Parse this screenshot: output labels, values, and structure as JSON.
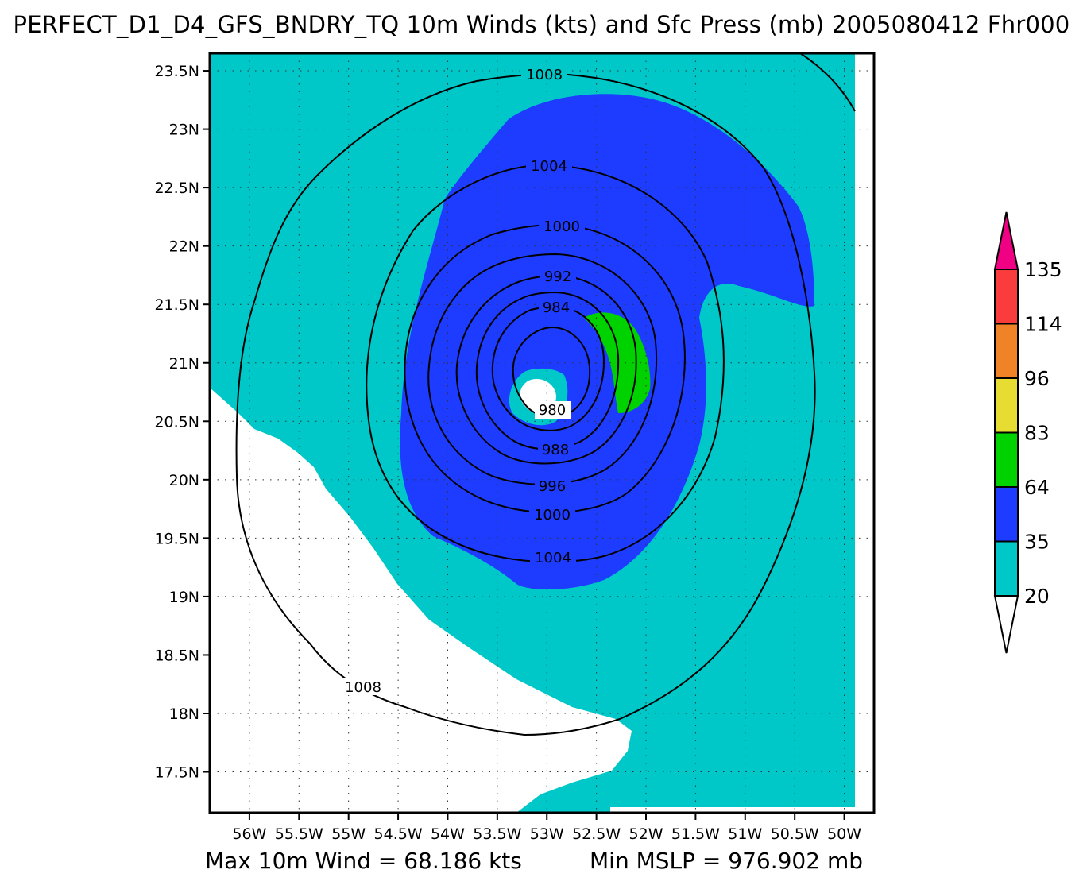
{
  "title": "PERFECT_D1_D4_GFS_BNDRY_TQ 10m Winds (kts) and Sfc Press (mb) 2005080412 Fhr000",
  "footer": {
    "max_wind": "Max 10m Wind = 68.186 kts",
    "min_mslp": "Min MSLP = 976.902 mb"
  },
  "map": {
    "lon_range": [
      -56.4,
      -49.7
    ],
    "lat_range": [
      17.15,
      23.65
    ],
    "lon_ticks": [
      {
        "value": -56.0,
        "label": "56W"
      },
      {
        "value": -55.5,
        "label": "55.5W"
      },
      {
        "value": -55.0,
        "label": "55W"
      },
      {
        "value": -54.5,
        "label": "54.5W"
      },
      {
        "value": -54.0,
        "label": "54W"
      },
      {
        "value": -53.5,
        "label": "53.5W"
      },
      {
        "value": -53.0,
        "label": "53W"
      },
      {
        "value": -52.5,
        "label": "52.5W"
      },
      {
        "value": -52.0,
        "label": "52W"
      },
      {
        "value": -51.5,
        "label": "51.5W"
      },
      {
        "value": -51.0,
        "label": "51W"
      },
      {
        "value": -50.5,
        "label": "50.5W"
      },
      {
        "value": -50.0,
        "label": "50W"
      }
    ],
    "lat_ticks": [
      {
        "value": 23.5,
        "label": "23.5N"
      },
      {
        "value": 23.0,
        "label": "23N"
      },
      {
        "value": 22.5,
        "label": "22.5N"
      },
      {
        "value": 22.0,
        "label": "22N"
      },
      {
        "value": 21.5,
        "label": "21.5N"
      },
      {
        "value": 21.0,
        "label": "21N"
      },
      {
        "value": 20.5,
        "label": "20.5N"
      },
      {
        "value": 20.0,
        "label": "20N"
      },
      {
        "value": 19.5,
        "label": "19.5N"
      },
      {
        "value": 19.0,
        "label": "19N"
      },
      {
        "value": 18.5,
        "label": "18.5N"
      },
      {
        "value": 18.0,
        "label": "18N"
      },
      {
        "value": 17.5,
        "label": "17.5N"
      }
    ],
    "wind_colors": {
      "calm": "#ffffff",
      "ts_20_35": "#00c8c8",
      "ts_35_64": "#1e3cff",
      "h_64_83": "#00d200",
      "h_83_96": "#e6dc32",
      "h_96_114": "#f08228",
      "h_114_135": "#fa3c3c",
      "h_135_plus": "#f00082"
    },
    "contour_labels": {
      "c1008_top": "1008",
      "c1008_bottom": "1008",
      "c1004_top": "1004",
      "c1004_bottom": "1004",
      "c1000_top": "1000",
      "c1000_bottom": "1000",
      "c996": "996",
      "c992": "992",
      "c988": "988",
      "c984": "984",
      "c980": "980"
    }
  },
  "legend": {
    "levels": [
      "20",
      "35",
      "64",
      "83",
      "96",
      "114",
      "135"
    ],
    "colors": [
      "#00c8c8",
      "#1e3cff",
      "#00d200",
      "#e6dc32",
      "#f08228",
      "#fa3c3c"
    ],
    "top_color": "#f00082",
    "bottom_color": "#ffffff"
  }
}
